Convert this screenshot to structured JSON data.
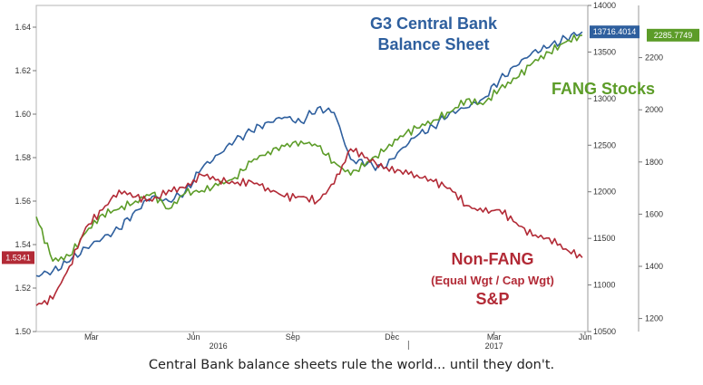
{
  "chart_data": {
    "type": "line",
    "x_tick_labels": [
      "Mar",
      "Jun",
      "Sep",
      "Dec",
      "Mar",
      "Jun"
    ],
    "year_labels": [
      "2016",
      "2017"
    ],
    "x_range": [
      0,
      100
    ],
    "left_axis": {
      "ticks": [
        "1.50",
        "1.52",
        "1.54",
        "1.56",
        "1.58",
        "1.60",
        "1.62",
        "1.64"
      ],
      "ylim": [
        1.5,
        1.65
      ]
    },
    "right_axis_1": {
      "ticks": [
        "10500",
        "11000",
        "11500",
        "12000",
        "12500",
        "13000",
        "13500",
        "14000"
      ],
      "ylim": [
        10500,
        14000
      ]
    },
    "right_axis_2": {
      "ticks": [
        "1200",
        "1400",
        "1600",
        "1800",
        "2000",
        "2200"
      ],
      "ylim": [
        1150,
        2400
      ]
    },
    "series": [
      {
        "name": "G3 Central Bank Balance Sheet",
        "axis": "right_axis_1",
        "color": "#2e5f9e",
        "last_value_label": "13716.4014",
        "x": [
          0,
          3,
          6,
          9,
          12,
          15,
          18,
          21,
          24,
          27,
          30,
          33,
          36,
          39,
          42,
          45,
          48,
          51,
          54,
          57,
          60,
          63,
          66,
          69,
          72,
          75,
          78,
          81,
          84,
          87,
          90,
          93,
          96,
          99
        ],
        "values": [
          11100,
          11150,
          11250,
          11400,
          11500,
          11600,
          11800,
          11950,
          11900,
          12000,
          12250,
          12400,
          12550,
          12650,
          12750,
          12800,
          12750,
          12900,
          12850,
          12350,
          12300,
          12250,
          12450,
          12600,
          12700,
          12850,
          12900,
          13000,
          13200,
          13350,
          13500,
          13550,
          13650,
          13716
        ]
      },
      {
        "name": "FANG Stocks",
        "axis": "right_axis_2",
        "color": "#5c9c28",
        "last_value_label": "2285.7749",
        "x": [
          0,
          3,
          6,
          9,
          12,
          15,
          18,
          21,
          24,
          27,
          30,
          33,
          36,
          39,
          42,
          45,
          48,
          51,
          54,
          57,
          60,
          63,
          66,
          69,
          72,
          75,
          78,
          81,
          84,
          87,
          90,
          93,
          96,
          99
        ],
        "values": [
          1590,
          1420,
          1440,
          1530,
          1600,
          1620,
          1650,
          1680,
          1620,
          1680,
          1690,
          1710,
          1740,
          1800,
          1840,
          1860,
          1880,
          1860,
          1800,
          1750,
          1800,
          1840,
          1900,
          1930,
          1960,
          1990,
          2040,
          2020,
          2080,
          2120,
          2180,
          2220,
          2260,
          2286
        ]
      },
      {
        "name": "Non-FANG (Equal Wgt / Cap Wgt) S&P",
        "axis": "left_axis",
        "color": "#b22a36",
        "last_value_label": "1.5341",
        "x": [
          0,
          3,
          6,
          9,
          12,
          15,
          18,
          21,
          24,
          27,
          30,
          33,
          36,
          39,
          42,
          45,
          48,
          51,
          54,
          57,
          60,
          63,
          66,
          69,
          72,
          75,
          78,
          81,
          84,
          87,
          90,
          93,
          96,
          99
        ],
        "values": [
          1.512,
          1.515,
          1.53,
          1.548,
          1.556,
          1.565,
          1.562,
          1.56,
          1.565,
          1.566,
          1.572,
          1.57,
          1.568,
          1.569,
          1.566,
          1.562,
          1.562,
          1.56,
          1.568,
          1.584,
          1.58,
          1.575,
          1.574,
          1.572,
          1.569,
          1.566,
          1.558,
          1.555,
          1.556,
          1.55,
          1.544,
          1.543,
          1.538,
          1.534
        ]
      }
    ],
    "annotations": {
      "blue_line1": "G3 Central Bank",
      "blue_line2": "Balance Sheet",
      "green": "FANG Stocks",
      "red_line1": "Non-FANG",
      "red_line2": "(Equal Wgt / Cap Wgt)",
      "red_line3": "S&P"
    }
  },
  "caption": "Central Bank balance sheets rule the world... until they don't."
}
